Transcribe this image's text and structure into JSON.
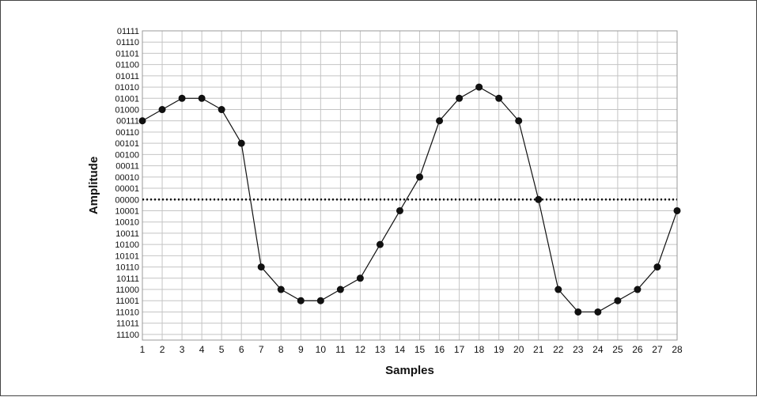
{
  "chart_data": {
    "type": "line",
    "title": "",
    "xlabel": "Samples",
    "ylabel": "Amplitude",
    "xlim": [
      1,
      28
    ],
    "x": [
      1,
      2,
      3,
      4,
      5,
      6,
      7,
      8,
      9,
      10,
      11,
      12,
      13,
      14,
      15,
      16,
      17,
      18,
      19,
      20,
      21,
      22,
      23,
      24,
      25,
      26,
      27,
      28
    ],
    "y_categories": [
      "11100",
      "11011",
      "11010",
      "11001",
      "11000",
      "10111",
      "10110",
      "10101",
      "10100",
      "10011",
      "10010",
      "10001",
      "00000",
      "00001",
      "00010",
      "00011",
      "00100",
      "00101",
      "00110",
      "00111",
      "01000",
      "01001",
      "01010",
      "01011",
      "01100",
      "01101",
      "01110",
      "01111"
    ],
    "zero_line_value": "00000",
    "grid": true,
    "series": [
      {
        "name": "",
        "values": [
          "00111",
          "01000",
          "01001",
          "01001",
          "01000",
          "00101",
          "10110",
          "11000",
          "11001",
          "11001",
          "11000",
          "10111",
          "10100",
          "10001",
          "00010",
          "00111",
          "01001",
          "01010",
          "01001",
          "00111",
          "00000",
          "11000",
          "11010",
          "11010",
          "11001",
          "11000",
          "10110",
          "10001"
        ]
      }
    ]
  }
}
